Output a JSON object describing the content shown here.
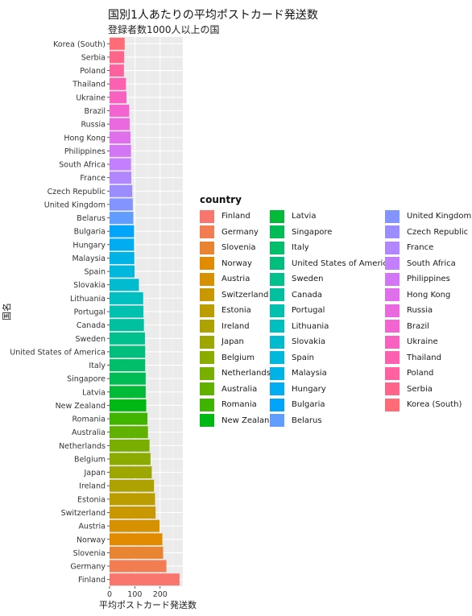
{
  "chart_data": {
    "type": "bar",
    "orientation": "horizontal",
    "title": "国別1人あたりの平均ポストカード発送数",
    "subtitle": "登録者数1000人以上の国",
    "xlabel": "平均ポストカード発送数",
    "ylabel": "国名",
    "xlim": [
      0,
      290
    ],
    "xticks": [
      0,
      100,
      200
    ],
    "grid": true,
    "legend_title": "country",
    "legend_position": "right",
    "categories": [
      "Finland",
      "Germany",
      "Slovenia",
      "Norway",
      "Austria",
      "Switzerland",
      "Estonia",
      "Ireland",
      "Japan",
      "Belgium",
      "Netherlands",
      "Australia",
      "Romania",
      "New Zealand",
      "Latvia",
      "Singapore",
      "Italy",
      "United States of America",
      "Sweden",
      "Canada",
      "Portugal",
      "Lithuania",
      "Slovakia",
      "Spain",
      "Malaysia",
      "Hungary",
      "Bulgaria",
      "Belarus",
      "United Kingdom",
      "Czech Republic",
      "France",
      "South Africa",
      "Philippines",
      "Hong Kong",
      "Russia",
      "Brazil",
      "Ukraine",
      "Thailand",
      "Poland",
      "Serbia",
      "Korea (South)"
    ],
    "values": [
      277,
      225,
      212,
      209,
      198,
      182,
      180,
      176,
      167,
      162,
      158,
      152,
      150,
      145,
      143,
      143,
      141,
      141,
      140,
      136,
      134,
      133,
      116,
      99,
      98,
      97,
      97,
      94,
      92,
      90,
      86,
      85,
      85,
      83,
      80,
      78,
      67,
      65,
      57,
      58,
      60
    ],
    "colors": [
      "#F8766D",
      "#F27D53",
      "#E98532",
      "#E08B00",
      "#D59100",
      "#C99800",
      "#BC9D00",
      "#AEA200",
      "#9DA700",
      "#8CAB00",
      "#78AF00",
      "#61B200",
      "#40B500",
      "#00B813",
      "#00BA38",
      "#00BC55",
      "#00BE6A",
      "#00BF7D",
      "#00C08E",
      "#00C0A0",
      "#00C0B0",
      "#00BFC0",
      "#00BCCE",
      "#00B8DB",
      "#00B3E7",
      "#00ADF1",
      "#00A5FA",
      "#619CFF",
      "#8394FF",
      "#9C8DFF",
      "#B186FF",
      "#C37FFF",
      "#D376F6",
      "#E06FEB",
      "#EB69DF",
      "#F464D0",
      "#F961C0",
      "#FC61AF",
      "#FF629E",
      "#FF658B",
      "#FF6C78"
    ]
  }
}
